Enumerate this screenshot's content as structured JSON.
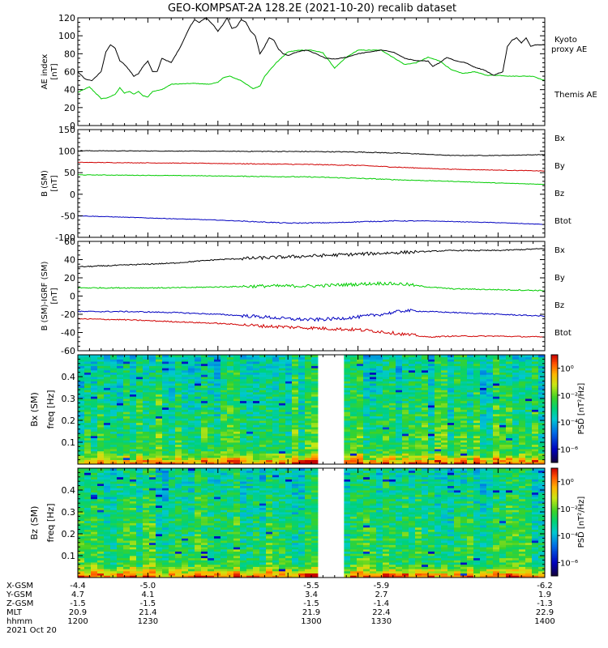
{
  "title": "GEO-KOMPSAT-2A 128.2E (2021-10-20) recalib dataset",
  "colors": {
    "black": "#000000",
    "red": "#d00000",
    "green": "#00cc00",
    "blue": "#0000c0",
    "white": "#ffffff"
  },
  "chart_data": [
    {
      "type": "line",
      "panel": "ae",
      "ylabel": [
        "AE index",
        "[nT]"
      ],
      "ylim": [
        0,
        120
      ],
      "yticks": [
        0,
        20,
        40,
        60,
        80,
        100,
        120
      ],
      "xlim": [
        1200,
        1400
      ],
      "legend": [
        "Kyoto",
        "proxy AE",
        "Themis AE"
      ],
      "legend_colors": [
        "#00cc00",
        "#00cc00",
        "#000000"
      ],
      "series": [
        {
          "name": "Kyoto proxy AE",
          "color": "#00cc00",
          "x": [
            1200,
            1205,
            1210,
            1213,
            1216,
            1218,
            1220,
            1222,
            1224,
            1226,
            1228,
            1230,
            1232,
            1236,
            1240,
            1250,
            1256,
            1260,
            1262,
            1265,
            1270,
            1275,
            1278,
            1280,
            1285,
            1290,
            1295,
            1300,
            1305,
            1310,
            1315,
            1320,
            1325,
            1330,
            1335,
            1340,
            1345,
            1350,
            1355,
            1360,
            1365,
            1370,
            1375,
            1380,
            1385,
            1390,
            1395,
            1400
          ],
          "y": [
            37,
            43,
            30,
            31,
            35,
            42,
            36,
            38,
            35,
            38,
            33,
            32,
            38,
            40,
            46,
            47,
            46,
            48,
            53,
            55,
            50,
            41,
            44,
            55,
            70,
            82,
            84,
            84,
            81,
            64,
            76,
            84,
            84,
            84,
            76,
            68,
            70,
            76,
            72,
            62,
            58,
            60,
            56,
            56,
            55,
            55,
            55,
            50
          ]
        },
        {
          "name": "Themis AE",
          "color": "#000000",
          "x": [
            1200,
            1203,
            1206,
            1210,
            1212,
            1214,
            1216,
            1218,
            1220,
            1222,
            1224,
            1226,
            1228,
            1230,
            1232,
            1234,
            1236,
            1240,
            1244,
            1248,
            1250,
            1252,
            1255,
            1258,
            1260,
            1262,
            1264,
            1266,
            1268,
            1270,
            1272,
            1274,
            1276,
            1278,
            1280,
            1282,
            1284,
            1286,
            1288,
            1290,
            1294,
            1298,
            1302,
            1306,
            1310,
            1315,
            1320,
            1325,
            1330,
            1335,
            1340,
            1345,
            1350,
            1352,
            1355,
            1358,
            1362,
            1366,
            1370,
            1374,
            1378,
            1382,
            1384,
            1386,
            1388,
            1390,
            1392,
            1394,
            1396,
            1400
          ],
          "y": [
            60,
            52,
            50,
            60,
            82,
            90,
            86,
            72,
            68,
            62,
            55,
            58,
            66,
            72,
            60,
            60,
            75,
            70,
            88,
            110,
            118,
            115,
            120,
            112,
            105,
            112,
            120,
            108,
            110,
            118,
            115,
            105,
            100,
            80,
            88,
            98,
            95,
            85,
            80,
            78,
            82,
            84,
            80,
            75,
            74,
            76,
            80,
            82,
            84,
            82,
            75,
            72,
            72,
            66,
            70,
            76,
            72,
            70,
            65,
            62,
            56,
            60,
            88,
            95,
            98,
            92,
            98,
            88,
            90,
            90
          ]
        }
      ]
    },
    {
      "type": "line",
      "panel": "b_sm",
      "ylabel": [
        "B (SM)",
        "[nT]"
      ],
      "ylim": [
        -100,
        150
      ],
      "yticks": [
        -100,
        -50,
        0,
        50,
        100,
        150
      ],
      "xlim": [
        1200,
        1400
      ],
      "legend": [
        "Bx",
        "By",
        "Bz",
        "Btot"
      ],
      "legend_colors": [
        "#0000c0",
        "#00cc00",
        "#d00000",
        "#000000"
      ],
      "series": [
        {
          "name": "Btot",
          "color": "#000000",
          "x": [
            1200,
            1250,
            1300,
            1320,
            1340,
            1360,
            1380,
            1400
          ],
          "y": [
            101,
            100,
            99,
            98,
            95,
            90,
            90,
            92
          ]
        },
        {
          "name": "By",
          "color": "#d00000",
          "x": [
            1200,
            1250,
            1300,
            1320,
            1340,
            1360,
            1380,
            1400
          ],
          "y": [
            74,
            72,
            69,
            67,
            62,
            58,
            56,
            54
          ]
        },
        {
          "name": "Bz",
          "color": "#00cc00",
          "x": [
            1200,
            1250,
            1300,
            1320,
            1340,
            1360,
            1380,
            1400
          ],
          "y": [
            45,
            43,
            40,
            37,
            33,
            30,
            26,
            23
          ]
        },
        {
          "name": "Bx",
          "color": "#0000c0",
          "x": [
            1200,
            1230,
            1260,
            1290,
            1310,
            1320,
            1335,
            1350,
            1380,
            1400
          ],
          "y": [
            -50,
            -55,
            -60,
            -67,
            -66,
            -64,
            -62,
            -62,
            -66,
            -70
          ]
        }
      ]
    },
    {
      "type": "line",
      "panel": "b_minus_igrf",
      "ylabel": [
        "B (SM)-IGRF (SM)",
        "[nT]"
      ],
      "ylim": [
        -60,
        60
      ],
      "yticks": [
        -60,
        -40,
        -20,
        0,
        20,
        40,
        60
      ],
      "xlim": [
        1200,
        1400
      ],
      "legend": [
        "Bx",
        "By",
        "Bz",
        "Btot"
      ],
      "legend_colors": [
        "#0000c0",
        "#00cc00",
        "#d00000",
        "#000000"
      ],
      "series": [
        {
          "name": "Btot",
          "color": "#000000",
          "x": [
            1200,
            1220,
            1240,
            1260,
            1280,
            1300,
            1320,
            1340,
            1360,
            1380,
            1400
          ],
          "y": [
            32,
            34,
            36,
            40,
            42,
            44,
            46,
            48,
            50,
            50,
            52
          ]
        },
        {
          "name": "By",
          "color": "#00cc00",
          "x": [
            1200,
            1220,
            1240,
            1260,
            1280,
            1300,
            1310,
            1320,
            1330,
            1340,
            1350,
            1360,
            1380,
            1400
          ],
          "y": [
            9,
            9,
            9,
            10,
            11,
            11,
            12,
            13,
            14,
            13,
            10,
            8,
            7,
            6
          ]
        },
        {
          "name": "Bx",
          "color": "#0000c0",
          "x": [
            1200,
            1220,
            1240,
            1260,
            1280,
            1290,
            1300,
            1310,
            1320,
            1330,
            1340,
            1350,
            1360,
            1380,
            1400
          ],
          "y": [
            -17,
            -17,
            -18,
            -20,
            -23,
            -25,
            -26,
            -25,
            -23,
            -20,
            -16,
            -17,
            -18,
            -20,
            -22
          ]
        },
        {
          "name": "Bz",
          "color": "#d00000",
          "x": [
            1200,
            1220,
            1240,
            1260,
            1280,
            1300,
            1310,
            1320,
            1330,
            1340,
            1350,
            1360,
            1380,
            1400
          ],
          "y": [
            -25,
            -26,
            -28,
            -30,
            -33,
            -35,
            -36,
            -37,
            -39,
            -42,
            -45,
            -44,
            -44,
            -45
          ]
        }
      ]
    },
    {
      "type": "heatmap",
      "panel": "bx_psd",
      "ylabel": [
        "Bx (SM)",
        "freq [Hz]"
      ],
      "ylim": [
        0,
        0.5
      ],
      "yticks": [
        0.1,
        0.2,
        0.3,
        0.4
      ],
      "xlim": [
        1200,
        1400
      ],
      "data_gap": [
        1304,
        1314
      ],
      "colorbar": {
        "label": "PSD [nT²/Hz]",
        "ticks": [
          "10⁰",
          "10⁻²",
          "10⁻⁴",
          "10⁻⁶"
        ],
        "log_range": [
          -7,
          1
        ]
      }
    },
    {
      "type": "heatmap",
      "panel": "bz_psd",
      "ylabel": [
        "Bz (SM)",
        "freq [Hz]"
      ],
      "ylim": [
        0,
        0.5
      ],
      "yticks": [
        0.1,
        0.2,
        0.3,
        0.4
      ],
      "xlim": [
        1200,
        1400
      ],
      "data_gap": [
        1304,
        1314
      ],
      "colorbar": {
        "label": "PSD [nT²/Hz]",
        "ticks": [
          "10⁰",
          "10⁻²",
          "10⁻⁴",
          "10⁻⁶"
        ],
        "log_range": [
          -7,
          1
        ]
      }
    }
  ],
  "ephemeris": {
    "date": "2021 Oct 20",
    "tick_times": [
      1200,
      1230,
      1300,
      1330,
      1400
    ],
    "rows": [
      {
        "label": "X-GSM",
        "values": [
          "-4.4",
          "-5.0",
          "-5.5",
          "-5.9",
          "-6.2"
        ]
      },
      {
        "label": "Y-GSM",
        "values": [
          "4.7",
          "4.1",
          "3.4",
          "2.7",
          "1.9"
        ]
      },
      {
        "label": "Z-GSM",
        "values": [
          "-1.5",
          "-1.5",
          "-1.5",
          "-1.4",
          "-1.3"
        ]
      },
      {
        "label": "MLT",
        "values": [
          "20.9",
          "21.4",
          "21.9",
          "22.4",
          "22.9"
        ]
      },
      {
        "label": "hhmm",
        "values": [
          "1200",
          "1230",
          "1300",
          "1330",
          "1400"
        ]
      }
    ]
  }
}
